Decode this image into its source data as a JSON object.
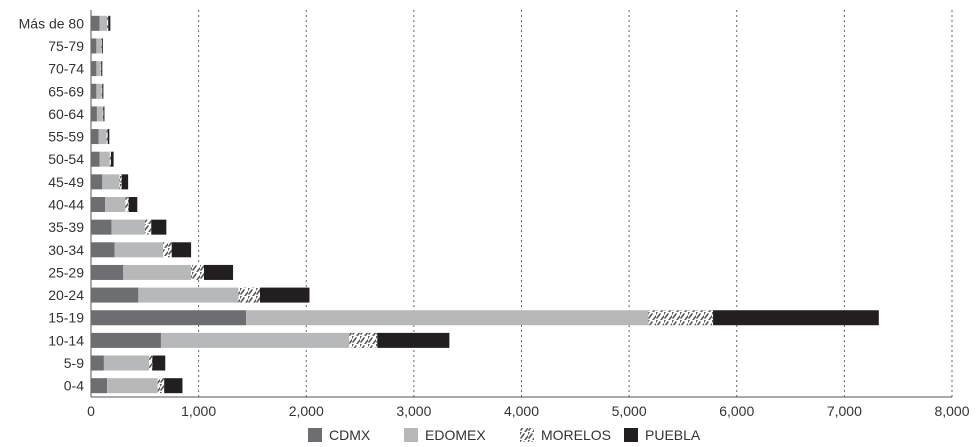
{
  "chart_data": {
    "type": "bar",
    "orientation": "horizontal",
    "stacked": true,
    "categories": [
      "Más de 80",
      "75-79",
      "70-74",
      "65-69",
      "60-64",
      "55-59",
      "50-54",
      "45-49",
      "40-44",
      "35-39",
      "30-34",
      "25-29",
      "20-24",
      "15-19",
      "10-14",
      "5-9",
      "0-4"
    ],
    "series": [
      {
        "name": "CDMX",
        "color": "#6d6e71",
        "pattern": "solid",
        "values": [
          80,
          50,
          50,
          50,
          55,
          70,
          80,
          105,
          130,
          190,
          220,
          300,
          440,
          1440,
          650,
          120,
          150
        ]
      },
      {
        "name": "EDOMEX",
        "color": "#b7b8ba",
        "pattern": "solid",
        "values": [
          70,
          45,
          40,
          50,
          55,
          75,
          95,
          160,
          190,
          310,
          450,
          630,
          930,
          3740,
          1750,
          420,
          470
        ]
      },
      {
        "name": "MORELOS",
        "color": "#ffffff",
        "pattern": "hatched",
        "values": [
          10,
          5,
          5,
          5,
          5,
          10,
          10,
          20,
          30,
          60,
          80,
          120,
          200,
          600,
          260,
          30,
          60
        ]
      },
      {
        "name": "PUEBLA",
        "color": "#231f20",
        "pattern": "solid",
        "values": [
          20,
          10,
          10,
          10,
          10,
          15,
          25,
          60,
          80,
          140,
          180,
          270,
          460,
          1540,
          670,
          120,
          170
        ]
      }
    ],
    "xticks": [
      "0",
      "1,000",
      "2,000",
      "3,000",
      "4,000",
      "5,000",
      "6,000",
      "7,000",
      "8,000"
    ],
    "xlim": [
      0,
      8000
    ],
    "grid": "vertical-dotted",
    "legend_position": "bottom"
  }
}
